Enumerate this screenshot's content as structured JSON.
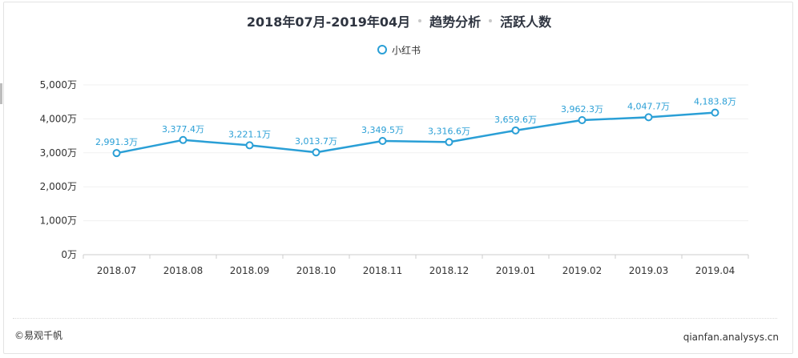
{
  "title_parts": [
    "2018年07月-2019年04月",
    "趋势分析",
    "活跃人数"
  ],
  "legend_label": "小红书",
  "footer_left": "©易观千帆",
  "footer_right": "qianfan.analysys.cn",
  "colors": {
    "series": "#2a9fd6",
    "label": "#2a9fd6",
    "axis": "#cccccc",
    "grid": "#f0f0f0"
  },
  "chart_data": {
    "type": "line",
    "title": "2018年07月-2019年04月 趋势分析 活跃人数",
    "categories": [
      "2018.07",
      "2018.08",
      "2018.09",
      "2018.10",
      "2018.11",
      "2018.12",
      "2019.01",
      "2019.02",
      "2019.03",
      "2019.04"
    ],
    "series": [
      {
        "name": "小红书",
        "values": [
          2991.3,
          3377.4,
          3221.1,
          3013.7,
          3349.5,
          3316.6,
          3659.6,
          3962.3,
          4047.7,
          4183.8
        ]
      }
    ],
    "data_labels": [
      "2,991.3万",
      "3,377.4万",
      "3,221.1万",
      "3,013.7万",
      "3,349.5万",
      "3,316.6万",
      "3,659.6万",
      "3,962.3万",
      "4,047.7万",
      "4,183.8万"
    ],
    "ylim": [
      0,
      5000
    ],
    "yticks": [
      0,
      1000,
      2000,
      3000,
      4000,
      5000
    ],
    "ytick_labels": [
      "0万",
      "1,000万",
      "2,000万",
      "3,000万",
      "4,000万",
      "5,000万"
    ],
    "grid": true,
    "legend_position": "top-center"
  }
}
